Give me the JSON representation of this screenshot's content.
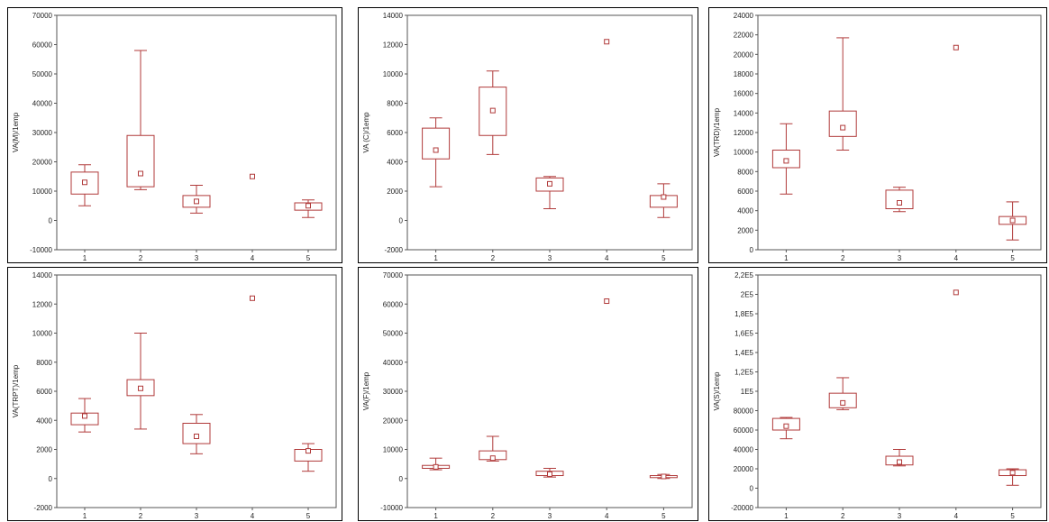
{
  "chart_data": [
    {
      "type": "box",
      "ylabel": "VA(M)/1emp",
      "ylim": [
        -10000,
        70000
      ],
      "yticks": [
        -10000,
        0,
        10000,
        20000,
        30000,
        40000,
        50000,
        60000,
        70000
      ],
      "ytick_labels": [
        "-10000",
        "0",
        "10000",
        "20000",
        "30000",
        "40000",
        "50000",
        "60000",
        "70000"
      ],
      "categories": [
        "1",
        "2",
        "3",
        "4",
        "5"
      ],
      "boxes": [
        {
          "min": 5000,
          "q1": 9000,
          "median": 13000,
          "q3": 16500,
          "max": 19000
        },
        {
          "min": 10500,
          "q1": 11500,
          "median": 16000,
          "q3": 29000,
          "max": 58000
        },
        {
          "min": 2500,
          "q1": 4500,
          "median": 6500,
          "q3": 8500,
          "max": 12000
        },
        {
          "min": null,
          "q1": null,
          "median": 15000,
          "q3": null,
          "max": null
        },
        {
          "min": 1000,
          "q1": 3500,
          "median": 5000,
          "q3": 6000,
          "max": 7000
        }
      ]
    },
    {
      "type": "box",
      "ylabel": "VA (C)/1emp",
      "ylim": [
        -2000,
        14000
      ],
      "yticks": [
        -2000,
        0,
        2000,
        4000,
        6000,
        8000,
        10000,
        12000,
        14000
      ],
      "ytick_labels": [
        "-2000",
        "0",
        "2000",
        "4000",
        "6000",
        "8000",
        "10000",
        "12000",
        "14000"
      ],
      "categories": [
        "1",
        "2",
        "3",
        "4",
        "5"
      ],
      "boxes": [
        {
          "min": 2300,
          "q1": 4200,
          "median": 4800,
          "q3": 6300,
          "max": 7000
        },
        {
          "min": 4500,
          "q1": 5800,
          "median": 7500,
          "q3": 9100,
          "max": 10200
        },
        {
          "min": 800,
          "q1": 2000,
          "median": 2500,
          "q3": 2900,
          "max": 3000
        },
        {
          "min": null,
          "q1": null,
          "median": 12200,
          "q3": null,
          "max": null
        },
        {
          "min": 200,
          "q1": 900,
          "median": 1600,
          "q3": 1700,
          "max": 2500
        }
      ]
    },
    {
      "type": "box",
      "ylabel": "VA(TRD)/1emp",
      "ylim": [
        0,
        24000
      ],
      "yticks": [
        0,
        2000,
        4000,
        6000,
        8000,
        10000,
        12000,
        14000,
        16000,
        18000,
        20000,
        22000,
        24000
      ],
      "ytick_labels": [
        "0",
        "2000",
        "4000",
        "6000",
        "8000",
        "10000",
        "12000",
        "14000",
        "16000",
        "18000",
        "20000",
        "22000",
        "24000"
      ],
      "categories": [
        "1",
        "2",
        "3",
        "4",
        "5"
      ],
      "boxes": [
        {
          "min": 5700,
          "q1": 8400,
          "median": 9100,
          "q3": 10200,
          "max": 12900
        },
        {
          "min": 10200,
          "q1": 11600,
          "median": 12500,
          "q3": 14200,
          "max": 21700
        },
        {
          "min": 3900,
          "q1": 4200,
          "median": 4800,
          "q3": 6100,
          "max": 6400
        },
        {
          "min": null,
          "q1": null,
          "median": 20700,
          "q3": null,
          "max": null
        },
        {
          "min": 1000,
          "q1": 2600,
          "median": 3000,
          "q3": 3400,
          "max": 4900
        }
      ]
    },
    {
      "type": "box",
      "ylabel": "VA(TRPT)/1emp",
      "ylim": [
        -2000,
        14000
      ],
      "yticks": [
        -2000,
        0,
        2000,
        4000,
        6000,
        8000,
        10000,
        12000,
        14000
      ],
      "ytick_labels": [
        "-2000",
        "0",
        "2000",
        "4000",
        "6000",
        "8000",
        "10000",
        "12000",
        "14000"
      ],
      "categories": [
        "1",
        "2",
        "3",
        "4",
        "5"
      ],
      "boxes": [
        {
          "min": 3200,
          "q1": 3700,
          "median": 4300,
          "q3": 4500,
          "max": 5500
        },
        {
          "min": 3400,
          "q1": 5700,
          "median": 6200,
          "q3": 6800,
          "max": 10000
        },
        {
          "min": 1700,
          "q1": 2400,
          "median": 2900,
          "q3": 3800,
          "max": 4400
        },
        {
          "min": null,
          "q1": null,
          "median": 12400,
          "q3": null,
          "max": null
        },
        {
          "min": 500,
          "q1": 1200,
          "median": 1900,
          "q3": 2000,
          "max": 2400
        }
      ]
    },
    {
      "type": "box",
      "ylabel": "VA(F)/1emp",
      "ylim": [
        -10000,
        70000
      ],
      "yticks": [
        -10000,
        0,
        10000,
        20000,
        30000,
        40000,
        50000,
        60000,
        70000
      ],
      "ytick_labels": [
        "-10000",
        "0",
        "10000",
        "20000",
        "30000",
        "40000",
        "50000",
        "60000",
        "70000"
      ],
      "categories": [
        "1",
        "2",
        "3",
        "4",
        "5"
      ],
      "boxes": [
        {
          "min": 3000,
          "q1": 3500,
          "median": 4000,
          "q3": 4500,
          "max": 7000
        },
        {
          "min": 6000,
          "q1": 6500,
          "median": 7000,
          "q3": 9500,
          "max": 14500
        },
        {
          "min": 500,
          "q1": 1000,
          "median": 1500,
          "q3": 2500,
          "max": 3500
        },
        {
          "min": null,
          "q1": null,
          "median": 61000,
          "q3": null,
          "max": null
        },
        {
          "min": 0,
          "q1": 300,
          "median": 700,
          "q3": 1000,
          "max": 1400
        }
      ]
    },
    {
      "type": "box",
      "ylabel": "VA(S)/1emp",
      "ylim": [
        -20000,
        220000
      ],
      "yticks": [
        -20000,
        0,
        20000,
        40000,
        60000,
        80000,
        100000,
        120000,
        140000,
        160000,
        180000,
        200000,
        220000
      ],
      "ytick_labels": [
        "-20000",
        "0",
        "20000",
        "40000",
        "60000",
        "80000",
        "1E5",
        "1,2E5",
        "1,4E5",
        "1,6E5",
        "1,8E5",
        "2E5",
        "2,2E5"
      ],
      "categories": [
        "1",
        "2",
        "3",
        "4",
        "5"
      ],
      "boxes": [
        {
          "min": 51000,
          "q1": 60000,
          "median": 64000,
          "q3": 72000,
          "max": 73000
        },
        {
          "min": 81000,
          "q1": 83000,
          "median": 88000,
          "q3": 98000,
          "max": 114000
        },
        {
          "min": 23000,
          "q1": 24000,
          "median": 27000,
          "q3": 33000,
          "max": 40000
        },
        {
          "min": null,
          "q1": null,
          "median": 202000,
          "q3": null,
          "max": null
        },
        {
          "min": 3000,
          "q1": 13000,
          "median": 16000,
          "q3": 19000,
          "max": 20000
        }
      ]
    }
  ]
}
